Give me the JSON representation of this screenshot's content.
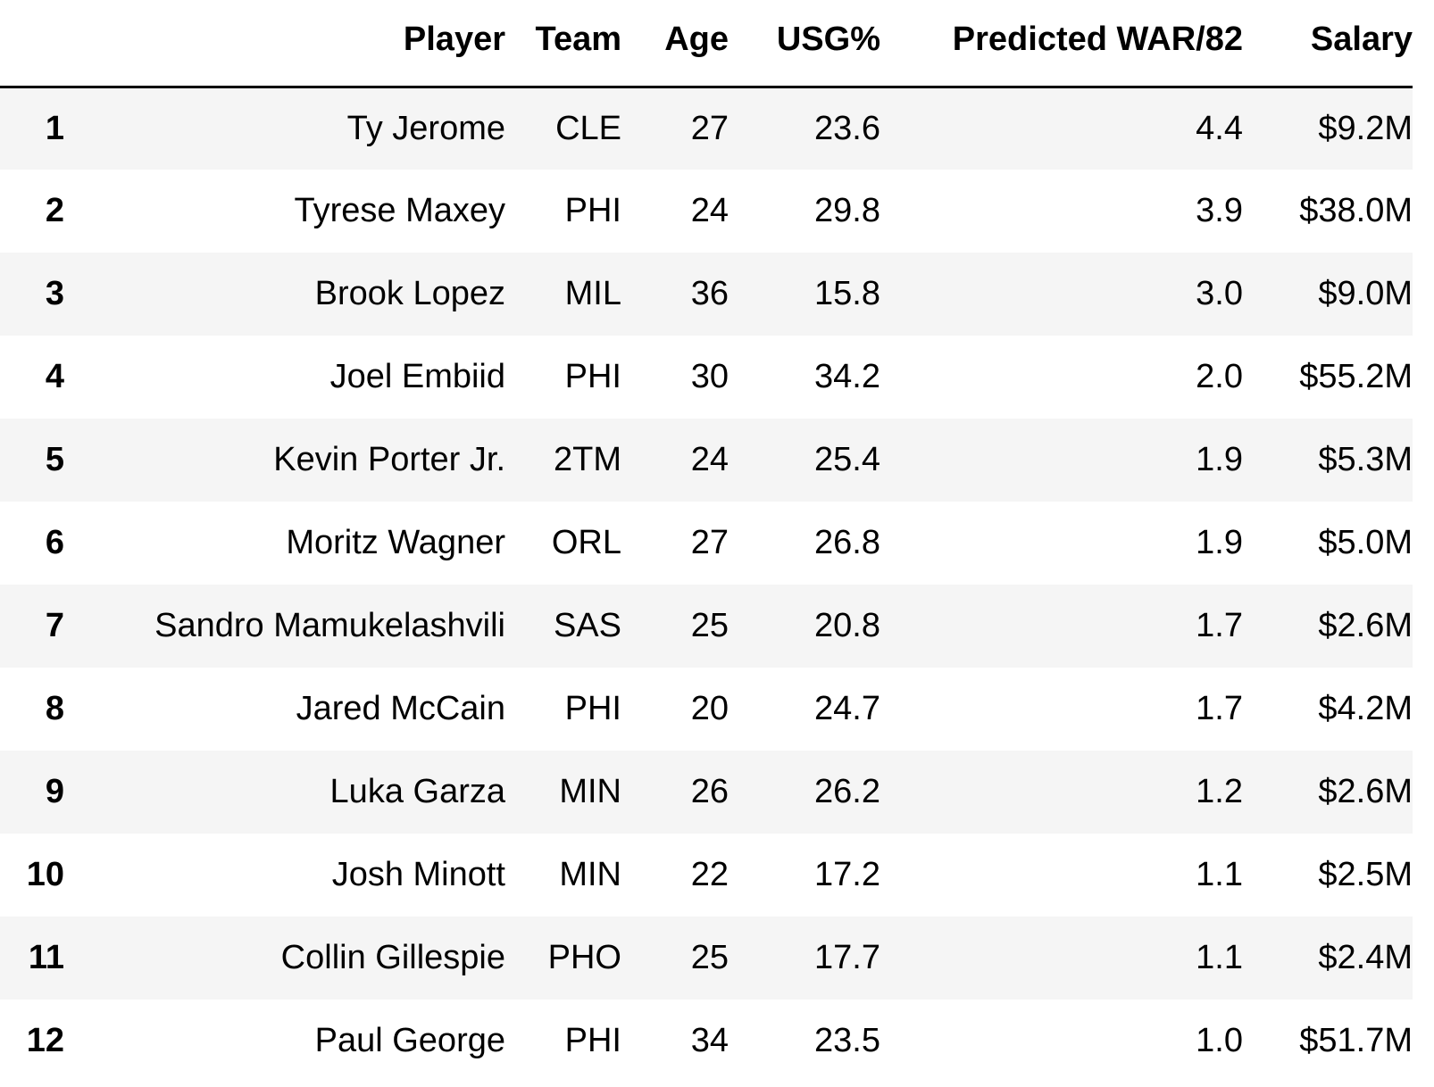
{
  "table": {
    "columns": [
      "",
      "Player",
      "Team",
      "Age",
      "USG%",
      "Predicted WAR/82",
      "Salary"
    ],
    "rows": [
      [
        "1",
        "Ty Jerome",
        "CLE",
        "27",
        "23.6",
        "4.4",
        "$9.2M"
      ],
      [
        "2",
        "Tyrese Maxey",
        "PHI",
        "24",
        "29.8",
        "3.9",
        "$38.0M"
      ],
      [
        "3",
        "Brook Lopez",
        "MIL",
        "36",
        "15.8",
        "3.0",
        "$9.0M"
      ],
      [
        "4",
        "Joel Embiid",
        "PHI",
        "30",
        "34.2",
        "2.0",
        "$55.2M"
      ],
      [
        "5",
        "Kevin Porter Jr.",
        "2TM",
        "24",
        "25.4",
        "1.9",
        "$5.3M"
      ],
      [
        "6",
        "Moritz Wagner",
        "ORL",
        "27",
        "26.8",
        "1.9",
        "$5.0M"
      ],
      [
        "7",
        "Sandro Mamukelashvili",
        "SAS",
        "25",
        "20.8",
        "1.7",
        "$2.6M"
      ],
      [
        "8",
        "Jared McCain",
        "PHI",
        "20",
        "24.7",
        "1.7",
        "$4.2M"
      ],
      [
        "9",
        "Luka Garza",
        "MIN",
        "26",
        "26.2",
        "1.2",
        "$2.6M"
      ],
      [
        "10",
        "Josh Minott",
        "MIN",
        "22",
        "17.2",
        "1.1",
        "$2.5M"
      ],
      [
        "11",
        "Collin Gillespie",
        "PHO",
        "25",
        "17.7",
        "1.1",
        "$2.4M"
      ],
      [
        "12",
        "Paul George",
        "PHI",
        "34",
        "23.5",
        "1.0",
        "$51.7M"
      ]
    ]
  },
  "colors": {
    "stripe": "#f5f5f5",
    "background": "#ffffff",
    "header_rule": "#000000"
  }
}
